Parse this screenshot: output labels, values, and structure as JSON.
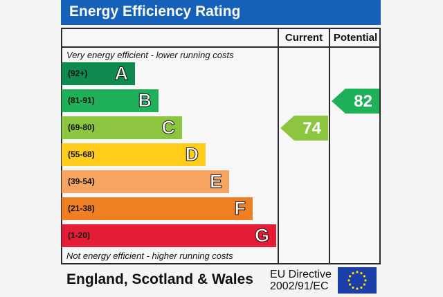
{
  "title": "Energy Efficiency Rating",
  "columns": {
    "current": "Current",
    "potential": "Potential"
  },
  "top_note": "Very energy efficient - lower running costs",
  "bottom_note": "Not energy efficient - higher running costs",
  "footer": {
    "region": "England, Scotland & Wales",
    "directive_line1": "EU Directive",
    "directive_line2": "2002/91/EC"
  },
  "colors": {
    "title_bg": "#1560b8",
    "flag_blue": "#1a3fa8",
    "flag_stars": "#ffde00"
  },
  "chart_data": {
    "type": "bar",
    "categories": [
      "A",
      "B",
      "C",
      "D",
      "E",
      "F",
      "G"
    ],
    "ranges": [
      "(92+)",
      "(81-91)",
      "(69-80)",
      "(55-68)",
      "(39-54)",
      "(21-38)",
      "(1-20)"
    ],
    "band_colors": [
      "#0e8a4f",
      "#1fb15a",
      "#8cc63f",
      "#ffcc1a",
      "#f5a462",
      "#f07e22",
      "#e41c36"
    ],
    "current": {
      "value": 74,
      "band": "C",
      "color": "#8cc63f"
    },
    "potential": {
      "value": 82,
      "band": "B",
      "color": "#1fb15a"
    }
  }
}
